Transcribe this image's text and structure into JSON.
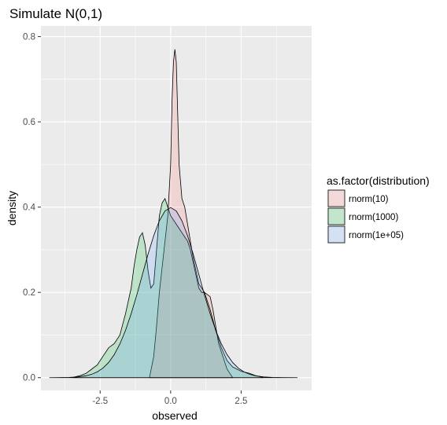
{
  "chart_data": {
    "type": "area",
    "title": "Simulate N(0,1)",
    "xlabel": "observed",
    "ylabel": "density",
    "xlim": [
      -4.6,
      5.0
    ],
    "ylim": [
      -0.03,
      0.825
    ],
    "x_ticks": [
      -2.5,
      0.0,
      2.5
    ],
    "x_tick_labels": [
      "-2.5",
      "0.0",
      "2.5"
    ],
    "y_ticks": [
      0.0,
      0.2,
      0.4,
      0.6,
      0.8
    ],
    "y_tick_labels": [
      "0.0",
      "0.2",
      "0.4",
      "0.6",
      "0.8"
    ],
    "grid": true,
    "legend": {
      "title": "as.factor(distribution)",
      "position": "right"
    },
    "series": [
      {
        "name": "rnorm(10)",
        "color": "#F8766D",
        "x": [
          -0.75,
          -0.6,
          -0.5,
          -0.4,
          -0.3,
          -0.2,
          -0.1,
          0.0,
          0.05,
          0.1,
          0.15,
          0.2,
          0.25,
          0.3,
          0.4,
          0.5,
          0.6,
          0.8,
          1.0,
          1.2,
          1.4,
          1.5,
          1.6,
          1.7,
          1.8,
          1.9,
          2.0,
          2.1,
          2.2
        ],
        "y": [
          0.0,
          0.05,
          0.12,
          0.2,
          0.26,
          0.32,
          0.38,
          0.5,
          0.65,
          0.74,
          0.77,
          0.74,
          0.62,
          0.5,
          0.42,
          0.4,
          0.36,
          0.28,
          0.22,
          0.2,
          0.19,
          0.16,
          0.12,
          0.08,
          0.06,
          0.04,
          0.02,
          0.01,
          0.0
        ]
      },
      {
        "name": "rnorm(1000)",
        "color": "#00BA38",
        "x": [
          -3.5,
          -3.2,
          -3.0,
          -2.8,
          -2.6,
          -2.4,
          -2.2,
          -2.0,
          -1.8,
          -1.6,
          -1.4,
          -1.3,
          -1.2,
          -1.1,
          -1.0,
          -0.9,
          -0.8,
          -0.7,
          -0.6,
          -0.5,
          -0.4,
          -0.3,
          -0.2,
          -0.1,
          0.0,
          0.1,
          0.2,
          0.3,
          0.4,
          0.5,
          0.6,
          0.7,
          0.8,
          0.9,
          1.0,
          1.1,
          1.2,
          1.4,
          1.6,
          1.8,
          2.0,
          2.2,
          2.5,
          2.8,
          3.0,
          3.3
        ],
        "y": [
          0.0,
          0.005,
          0.01,
          0.02,
          0.03,
          0.05,
          0.07,
          0.08,
          0.1,
          0.15,
          0.21,
          0.26,
          0.3,
          0.33,
          0.34,
          0.31,
          0.25,
          0.21,
          0.22,
          0.3,
          0.38,
          0.41,
          0.42,
          0.4,
          0.38,
          0.37,
          0.36,
          0.35,
          0.34,
          0.33,
          0.32,
          0.3,
          0.27,
          0.24,
          0.21,
          0.2,
          0.2,
          0.16,
          0.11,
          0.07,
          0.04,
          0.025,
          0.015,
          0.01,
          0.005,
          0.0
        ]
      },
      {
        "name": "rnorm(1e+05)",
        "color": "#619CFF",
        "x": [
          -4.3,
          -4.0,
          -3.6,
          -3.3,
          -3.0,
          -2.8,
          -2.6,
          -2.4,
          -2.2,
          -2.0,
          -1.8,
          -1.6,
          -1.4,
          -1.2,
          -1.0,
          -0.8,
          -0.6,
          -0.4,
          -0.2,
          0.0,
          0.2,
          0.4,
          0.6,
          0.8,
          1.0,
          1.2,
          1.4,
          1.6,
          1.8,
          2.0,
          2.2,
          2.4,
          2.6,
          2.8,
          3.0,
          3.3,
          3.6,
          4.0,
          4.5
        ],
        "y": [
          0.0,
          0.0001,
          0.0006,
          0.0017,
          0.0044,
          0.0079,
          0.0136,
          0.0224,
          0.0355,
          0.054,
          0.079,
          0.111,
          0.15,
          0.194,
          0.242,
          0.29,
          0.333,
          0.368,
          0.391,
          0.399,
          0.391,
          0.368,
          0.333,
          0.29,
          0.242,
          0.194,
          0.15,
          0.111,
          0.079,
          0.054,
          0.0355,
          0.0224,
          0.0136,
          0.0079,
          0.0044,
          0.0017,
          0.0006,
          0.0001,
          0.0
        ]
      }
    ]
  }
}
